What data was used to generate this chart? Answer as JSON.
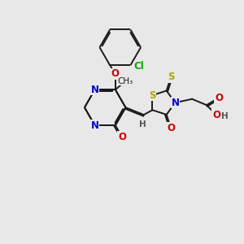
{
  "background_color": "#e8e8e8",
  "bond_color": "#1a1a1a",
  "atom_colors": {
    "N": "#0000cc",
    "O": "#cc0000",
    "S": "#aaaa00",
    "Cl": "#00aa00",
    "H": "#555555",
    "C": "#1a1a1a"
  },
  "bond_lw": 1.4,
  "font_size": 8.5,
  "figsize": [
    3.0,
    3.0
  ],
  "dpi": 100
}
